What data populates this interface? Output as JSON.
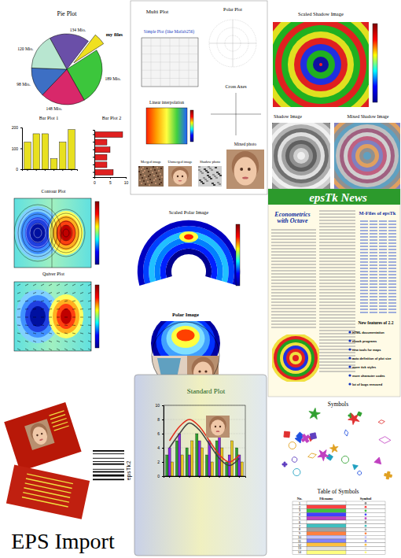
{
  "chart_data": [
    {
      "type": "pie",
      "title": "Pie Plot",
      "categories": [
        null,
        "my files",
        null,
        null,
        null,
        null
      ],
      "values": [
        134,
        40,
        189,
        148,
        98,
        120
      ],
      "value_labels": [
        "134 Mio.",
        null,
        "189 Mio.",
        "148 Mio.",
        "98 Mio.",
        "120 Mio."
      ],
      "colors": [
        "#6a4fa8",
        "#f0e020",
        "#3cc63c",
        "#d8286a",
        "#3d6fc4",
        "#b8e6d0"
      ],
      "data_labels": true
    },
    {
      "type": "bar",
      "title": "Bar Plot 1",
      "categories": [
        null,
        null,
        null,
        null,
        null,
        null
      ],
      "values": [
        130,
        170,
        170,
        50,
        130,
        190
      ],
      "ylim": [
        0,
        200
      ],
      "yticks": [
        0,
        100,
        200
      ],
      "color": "#e8e020",
      "tick_labels": "y"
    },
    {
      "type": "bar",
      "title": "Bar Plot 2",
      "orientation": "horizontal",
      "categories": [
        null,
        null,
        null,
        null,
        null,
        null
      ],
      "values": [
        9,
        4,
        5,
        4,
        4,
        6
      ],
      "xlim": [
        0,
        10
      ],
      "xticks": [
        0,
        5,
        10
      ],
      "color": "#e02020",
      "tick_labels": "x"
    },
    {
      "type": "bar",
      "title": "Standard Plot",
      "categories": [
        null,
        null,
        null,
        null,
        null,
        null,
        null,
        null
      ],
      "ylim": [
        0,
        10
      ],
      "yticks": [
        0,
        2,
        4,
        6,
        8,
        10
      ],
      "grid": true,
      "series": [
        {
          "type": "bar",
          "color": "#2ea02e",
          "values": [
            3,
            5,
            4,
            6,
            3,
            5,
            2,
            4
          ]
        },
        {
          "type": "bar",
          "color": "#8a2be2",
          "values": [
            4,
            6,
            3,
            5,
            5,
            6,
            3,
            3
          ]
        },
        {
          "type": "bar",
          "color": "#e8c820",
          "values": [
            2,
            3,
            5,
            4,
            2,
            4,
            5,
            2
          ]
        },
        {
          "type": "line",
          "color": "#e03020",
          "values": [
            5,
            7,
            8,
            7,
            5,
            3,
            2,
            3
          ]
        },
        {
          "type": "line",
          "color": "#404040",
          "values": [
            4,
            6,
            7.5,
            6.5,
            4.5,
            2.5,
            1.5,
            2.5
          ]
        }
      ]
    }
  ],
  "panels": {
    "multi_plot": "Multi Plot",
    "simple_plot": "Simple Plot (like Matlab256)",
    "polar_plot": "Polar Plot",
    "cross_axes": "Cross Axes",
    "linear_interpolation": "Linear interpolation",
    "merged_image": "Merged image",
    "unmerged_image": "Unmerged image",
    "shadow_photo": "Shadow photo",
    "mixed_photo": "Mixed photo",
    "scaled_shadow_image": "Scaled Shadow Image",
    "shadow_image": "Shadow Image",
    "mixed_shadow_image": "Mixed Shadow Image",
    "contour_plot": "Contour Plot",
    "quiver_plot": "Quiver Plot",
    "scaled_polar_image": "Scaled Polar Image",
    "polar_image": "Polar Image",
    "symbols": "Symbols",
    "eps_import": "EPS Import",
    "barcode": "epsTk2"
  },
  "news": {
    "title": "epsTk News",
    "heading": "Econometrics with Octave",
    "sidebar": "M-Files of epsTk",
    "features_title": "New features of 2.2",
    "features": [
      "HTML documentation",
      "ebook programs",
      "new tools for maps",
      "auto definition of plot size",
      "more tick styles",
      "more character codes",
      "lot of bugs removed"
    ]
  },
  "table": {
    "title": "Table of Symbols",
    "header": [
      "No.",
      "Filename",
      "Symbol"
    ],
    "rows": [
      1,
      2,
      3,
      4,
      5,
      6,
      7,
      8,
      9,
      10,
      11,
      12,
      13,
      14
    ],
    "colors": [
      "#ffffff",
      "#ff4040",
      "#40c040",
      "#4040ff",
      "#c040c0",
      "#ffffff",
      "#40c0c0",
      "#a0a0a0",
      "#ff8040",
      "#c0c0ff",
      "#8080ff",
      "#ffc040",
      "#e0e0e0",
      "#ffff80"
    ]
  }
}
